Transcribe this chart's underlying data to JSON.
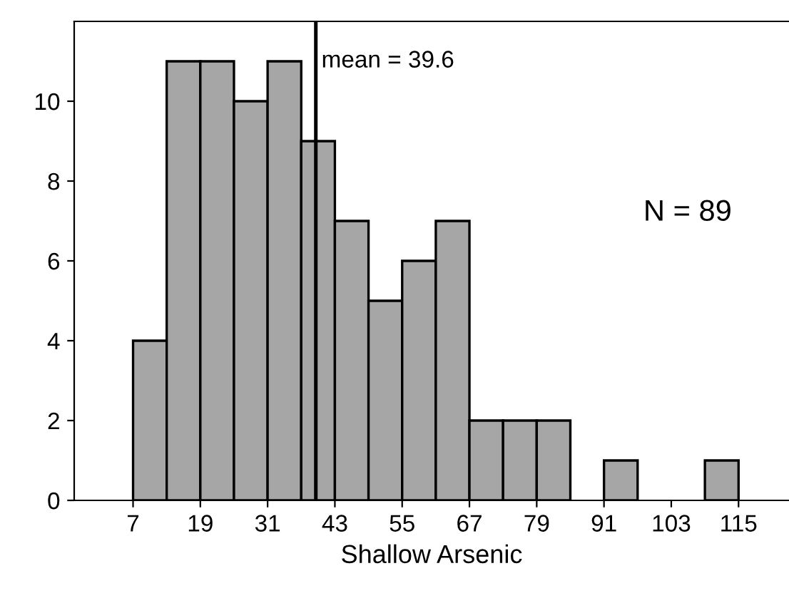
{
  "chart_data": {
    "type": "histogram",
    "xlabel": "Shallow Arsenic",
    "bins": [
      7,
      13,
      19,
      25,
      31,
      37,
      43,
      49,
      55,
      61,
      67,
      73,
      79,
      85,
      91,
      97,
      103,
      109,
      115
    ],
    "values": [
      4,
      11,
      11,
      10,
      11,
      9,
      7,
      5,
      6,
      7,
      2,
      2,
      2,
      0,
      1,
      0,
      0,
      1
    ],
    "color": "#a6a6a6",
    "xlim": [
      -3.5,
      124
    ],
    "xticks": [
      7,
      19,
      31,
      43,
      55,
      67,
      79,
      91,
      103,
      115
    ],
    "ylim": [
      0,
      12
    ],
    "yticks": [
      0,
      2,
      4,
      6,
      8,
      10
    ],
    "ref_lines": [
      {
        "axis": "x",
        "value": 39.6,
        "label": "mean = 39.6",
        "color": "#000000"
      }
    ],
    "annotations": [
      "N = 89"
    ],
    "grid": false,
    "legend": false
  }
}
